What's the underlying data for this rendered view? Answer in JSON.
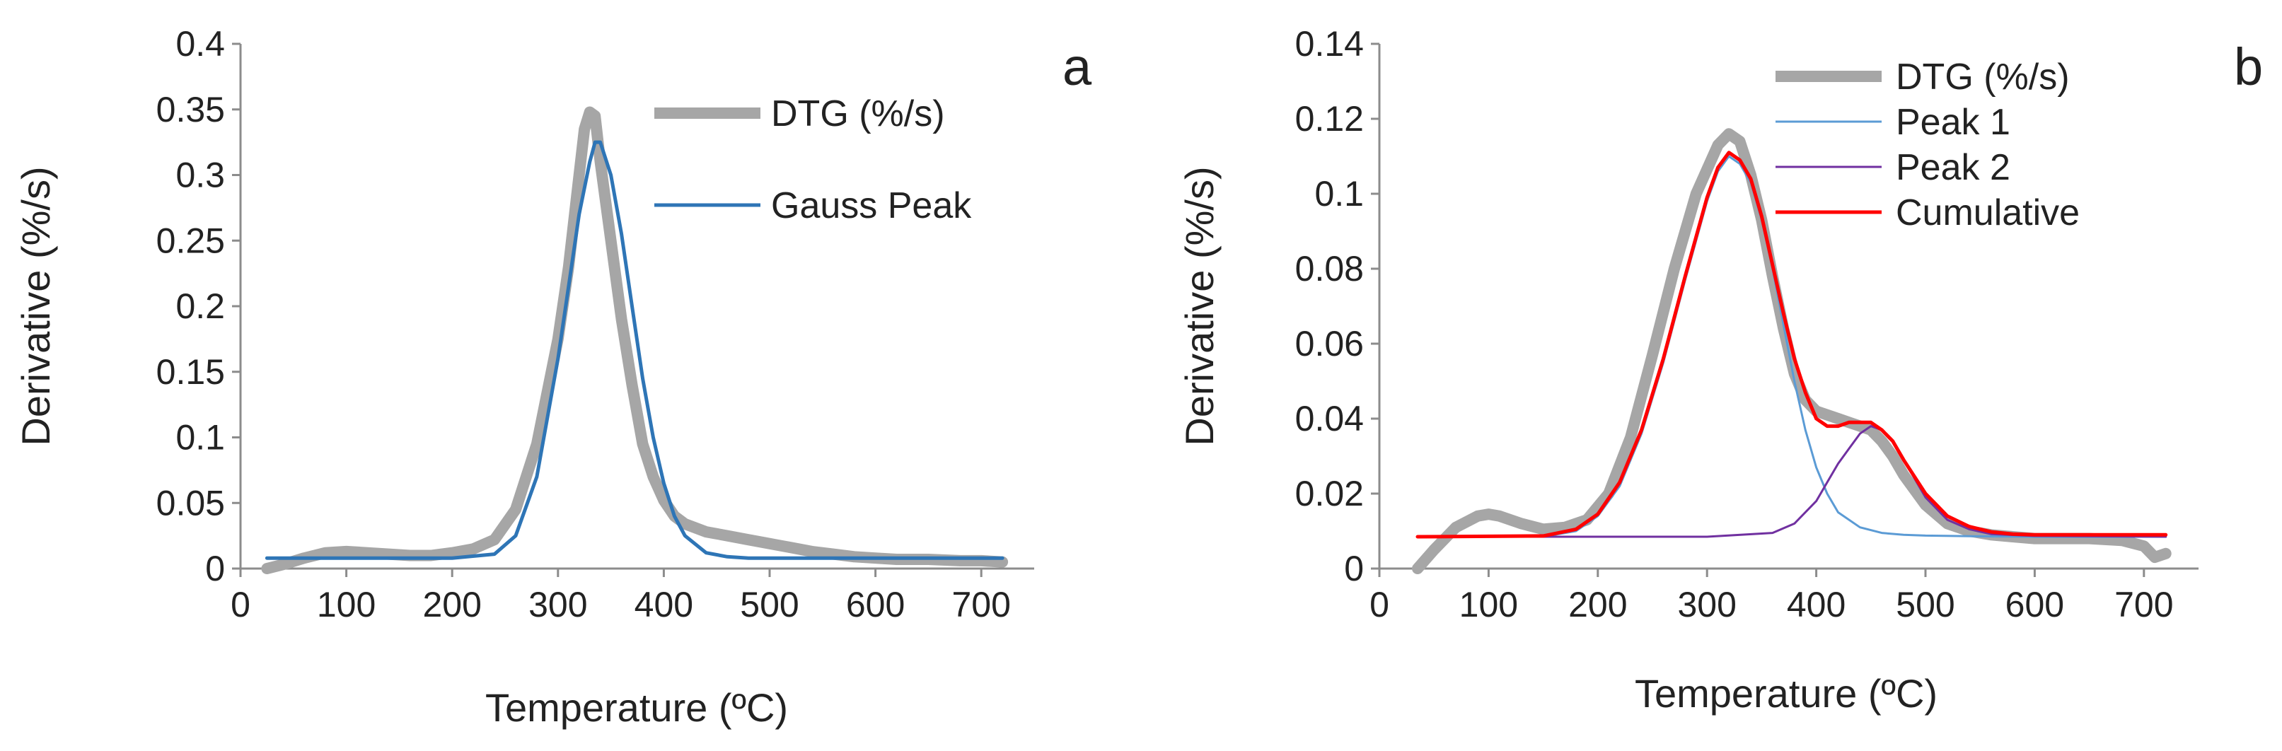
{
  "chart_data": [
    {
      "panel": "a",
      "type": "line",
      "xlabel": "Temperature (ºC)",
      "ylabel": "Derivative (%/s)",
      "xlim": [
        0,
        750
      ],
      "ylim": [
        0,
        0.4
      ],
      "xticks": [
        0,
        100,
        200,
        300,
        400,
        500,
        600,
        700
      ],
      "yticks": [
        0,
        0.05,
        0.1,
        0.15,
        0.2,
        0.25,
        0.3,
        0.35,
        0.4
      ],
      "ytick_labels": [
        "0",
        "0.05",
        "0.1",
        "0.15",
        "0.2",
        "0.25",
        "0.3",
        "0.35",
        "0.4"
      ],
      "legend": "top-right",
      "series": [
        {
          "name": "DTG (%/s)",
          "color": "#a6a6a6",
          "x": [
            25,
            40,
            60,
            80,
            100,
            120,
            140,
            160,
            180,
            200,
            220,
            240,
            260,
            280,
            300,
            310,
            320,
            325,
            330,
            335,
            340,
            350,
            360,
            370,
            380,
            390,
            400,
            410,
            420,
            440,
            460,
            480,
            500,
            520,
            540,
            560,
            580,
            600,
            620,
            650,
            680,
            700,
            720
          ],
          "y": [
            0.0,
            0.003,
            0.008,
            0.012,
            0.013,
            0.012,
            0.011,
            0.01,
            0.01,
            0.012,
            0.015,
            0.022,
            0.045,
            0.095,
            0.175,
            0.23,
            0.3,
            0.335,
            0.348,
            0.345,
            0.31,
            0.25,
            0.19,
            0.14,
            0.095,
            0.07,
            0.052,
            0.04,
            0.034,
            0.028,
            0.025,
            0.022,
            0.019,
            0.016,
            0.013,
            0.011,
            0.009,
            0.008,
            0.007,
            0.007,
            0.006,
            0.006,
            0.005
          ]
        },
        {
          "name": "Gauss Peak",
          "color": "#2e75b6",
          "x": [
            25,
            100,
            200,
            240,
            260,
            280,
            300,
            310,
            320,
            330,
            335,
            340,
            350,
            360,
            370,
            380,
            390,
            400,
            410,
            420,
            440,
            460,
            480,
            500,
            600,
            720
          ],
          "y": [
            0.008,
            0.008,
            0.008,
            0.011,
            0.025,
            0.07,
            0.16,
            0.215,
            0.27,
            0.31,
            0.325,
            0.325,
            0.3,
            0.255,
            0.2,
            0.145,
            0.1,
            0.065,
            0.04,
            0.025,
            0.012,
            0.009,
            0.008,
            0.008,
            0.008,
            0.008
          ]
        }
      ]
    },
    {
      "panel": "b",
      "type": "line",
      "xlabel": "Temperature (ºC)",
      "ylabel": "Derivative (%/s)",
      "xlim": [
        0,
        750
      ],
      "ylim": [
        0,
        0.14
      ],
      "xticks": [
        0,
        100,
        200,
        300,
        400,
        500,
        600,
        700
      ],
      "yticks": [
        0,
        0.02,
        0.04,
        0.06,
        0.08,
        0.1,
        0.12,
        0.14
      ],
      "ytick_labels": [
        "0",
        "0.02",
        "0.04",
        "0.06",
        "0.08",
        "0.1",
        "0.12",
        "0.14"
      ],
      "legend": "top-right",
      "series": [
        {
          "name": "DTG (%/s)",
          "color": "#a6a6a6",
          "x": [
            35,
            50,
            70,
            90,
            100,
            110,
            130,
            150,
            170,
            190,
            210,
            230,
            250,
            270,
            290,
            310,
            320,
            330,
            340,
            350,
            360,
            370,
            380,
            390,
            400,
            410,
            420,
            430,
            440,
            450,
            460,
            470,
            480,
            500,
            520,
            540,
            560,
            580,
            600,
            620,
            650,
            680,
            700,
            710,
            720
          ],
          "y": [
            0.0,
            0.005,
            0.011,
            0.014,
            0.0145,
            0.014,
            0.012,
            0.0105,
            0.011,
            0.013,
            0.02,
            0.035,
            0.057,
            0.08,
            0.1,
            0.113,
            0.116,
            0.114,
            0.105,
            0.093,
            0.078,
            0.064,
            0.052,
            0.045,
            0.042,
            0.041,
            0.04,
            0.039,
            0.038,
            0.037,
            0.034,
            0.03,
            0.025,
            0.017,
            0.012,
            0.01,
            0.009,
            0.0085,
            0.008,
            0.008,
            0.008,
            0.0075,
            0.006,
            0.003,
            0.004
          ]
        },
        {
          "name": "Peak 1",
          "color": "#5b9bd5",
          "x": [
            35,
            150,
            180,
            200,
            220,
            240,
            260,
            280,
            300,
            310,
            320,
            330,
            340,
            350,
            360,
            370,
            380,
            390,
            400,
            410,
            420,
            440,
            460,
            480,
            500,
            550,
            600,
            700,
            720
          ],
          "y": [
            0.0085,
            0.0085,
            0.01,
            0.014,
            0.022,
            0.036,
            0.055,
            0.077,
            0.098,
            0.106,
            0.11,
            0.108,
            0.103,
            0.093,
            0.08,
            0.065,
            0.05,
            0.037,
            0.027,
            0.02,
            0.015,
            0.011,
            0.0095,
            0.009,
            0.0088,
            0.0086,
            0.0085,
            0.0085,
            0.0085
          ]
        },
        {
          "name": "Peak 2",
          "color": "#7030a0",
          "x": [
            35,
            300,
            360,
            380,
            400,
            410,
            420,
            430,
            440,
            450,
            460,
            470,
            480,
            490,
            500,
            520,
            540,
            560,
            600,
            720
          ],
          "y": [
            0.0085,
            0.0085,
            0.0095,
            0.012,
            0.018,
            0.023,
            0.028,
            0.032,
            0.036,
            0.038,
            0.037,
            0.034,
            0.029,
            0.024,
            0.019,
            0.013,
            0.0105,
            0.0092,
            0.0087,
            0.0085
          ]
        },
        {
          "name": "Cumulative",
          "color": "#ff0000",
          "x": [
            35,
            150,
            180,
            200,
            220,
            240,
            260,
            280,
            300,
            310,
            320,
            330,
            340,
            350,
            360,
            370,
            380,
            390,
            400,
            410,
            420,
            430,
            440,
            450,
            460,
            470,
            480,
            500,
            520,
            540,
            560,
            580,
            600,
            720
          ],
          "y": [
            0.0085,
            0.0087,
            0.0105,
            0.0145,
            0.023,
            0.037,
            0.056,
            0.078,
            0.099,
            0.107,
            0.111,
            0.109,
            0.104,
            0.094,
            0.081,
            0.068,
            0.056,
            0.047,
            0.04,
            0.038,
            0.038,
            0.039,
            0.039,
            0.039,
            0.037,
            0.034,
            0.029,
            0.02,
            0.014,
            0.0112,
            0.0098,
            0.0092,
            0.009,
            0.009
          ]
        }
      ]
    }
  ],
  "panels": [
    {
      "letter": "a",
      "xlabel": "Temperature (ºC)",
      "ylabel": "Derivative (%/s)",
      "legend": [
        "DTG (%/s)",
        "Gauss Peak"
      ]
    },
    {
      "letter": "b",
      "xlabel": "Temperature (ºC)",
      "ylabel": "Derivative (%/s)",
      "legend": [
        "DTG (%/s)",
        "Peak 1",
        "Peak 2",
        "Cumulative"
      ]
    }
  ]
}
